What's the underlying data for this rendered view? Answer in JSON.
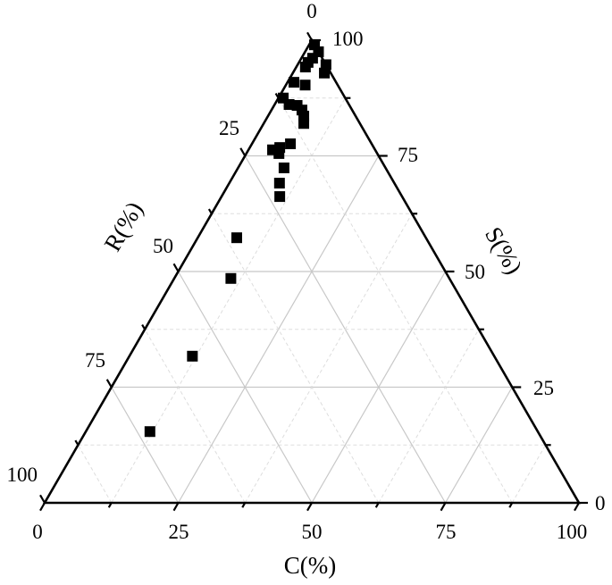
{
  "chart_data": {
    "type": "scatter",
    "subtype": "ternary",
    "title": "",
    "axes": {
      "C": {
        "label": "C(%)",
        "ticks": [
          "0",
          "25",
          "50",
          "75",
          "100"
        ],
        "position": "bottom"
      },
      "S": {
        "label": "S(%)",
        "ticks": [
          "0",
          "25",
          "50",
          "75",
          "100"
        ],
        "position": "right"
      },
      "R": {
        "label": "R(%)",
        "ticks": [
          "0",
          "25",
          "50",
          "75",
          "100"
        ],
        "position": "left"
      }
    },
    "range": [
      0,
      100
    ],
    "grid": true,
    "grid_major": 25,
    "grid_minor": 12.5,
    "marker": "square",
    "marker_color": "#000000",
    "grid_color": "#c8c8c8",
    "point_fields": [
      "R",
      "S",
      "C"
    ],
    "points": [
      [
        0,
        99,
        1
      ],
      [
        0,
        97.5,
        2.5
      ],
      [
        1.8,
        96.1,
        2.1
      ],
      [
        3.1,
        95.2,
        1.7
      ],
      [
        4.1,
        94.2,
        1.7
      ],
      [
        0,
        94.7,
        5.3
      ],
      [
        1.2,
        92.9,
        5.9
      ],
      [
        7.9,
        90.9,
        1.2
      ],
      [
        6.1,
        90.3,
        3.6
      ],
      [
        11.6,
        87.5,
        0.9
      ],
      [
        11.2,
        86.1,
        2.7
      ],
      [
        9.8,
        85.9,
        4.3
      ],
      [
        9.4,
        84.9,
        5.7
      ],
      [
        9.7,
        83.6,
        6.7
      ],
      [
        10.5,
        82.0,
        7.5
      ],
      [
        19.2,
        76.3,
        4.5
      ],
      [
        18.4,
        75.5,
        6.1
      ],
      [
        17.6,
        76.8,
        5.6
      ],
      [
        15.2,
        77.6,
        7.2
      ],
      [
        19.0,
        72.4,
        8.6
      ],
      [
        21.5,
        69.1,
        9.4
      ],
      [
        22.9,
        66.2,
        10.9
      ],
      [
        35.4,
        57.3,
        7.3
      ],
      [
        40.9,
        48.5,
        10.6
      ],
      [
        56.5,
        31.7,
        11.8
      ],
      [
        72.6,
        15.4,
        12.0
      ]
    ]
  }
}
